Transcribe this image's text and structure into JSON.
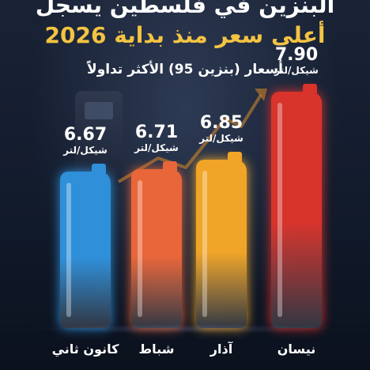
{
  "header": {
    "title_line1": "البنزين في فلسطين يسجل",
    "title_line2": "أعلى سعر منذ بداية 2026",
    "subtitle": "أسعار (بنزين 95) الأكثر تداولاً"
  },
  "chart_data": {
    "type": "bar",
    "title": "أسعار (بنزين 95) الأكثر تداولاً",
    "categories": [
      "كانون ثاني",
      "شباط",
      "آذار",
      "نيسان"
    ],
    "values": [
      6.67,
      6.71,
      6.85,
      7.9
    ],
    "value_labels": [
      "6.67",
      "6.71",
      "6.85",
      "7.90"
    ],
    "unit": "شيكل/لتر",
    "bar_colors": [
      "#2f8fd8",
      "#e8663a",
      "#f0a528",
      "#d8342c"
    ]
  }
}
